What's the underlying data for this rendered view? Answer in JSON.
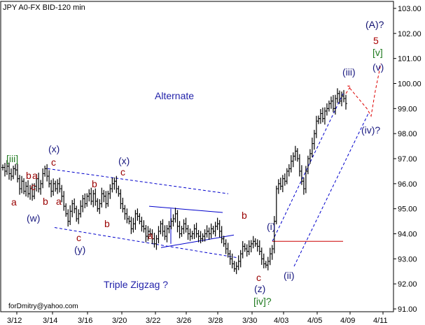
{
  "chart_data": {
    "type": "candlestick",
    "title": "JPY A0-FX BID-120 min",
    "footer": "forDmitry@yahoo.com",
    "ylim": [
      90.8,
      103.2
    ],
    "y_ticks": [
      "103.00",
      "102.00",
      "101.00",
      "100.00",
      "99.00",
      "98.00",
      "97.00",
      "96.00",
      "95.00",
      "94.00",
      "93.00",
      "92.00",
      "91.00"
    ],
    "x_ticks": [
      "3/12",
      "3/14",
      "3/16",
      "3/20",
      "3/22",
      "3/26",
      "3/28",
      "3/30",
      "4/03",
      "4/05",
      "4/09",
      "4/11"
    ],
    "annotations_text": {
      "alternate": "Alternate",
      "triple_zigzag": "Triple Zigzag ?",
      "A": "(A)?",
      "five": "5",
      "v_bracket": "[v]",
      "v_paren": "(v)",
      "iii_paren": "(iii)",
      "iv_q": "(iv)?",
      "iii_bracket": "[iii]",
      "x1": "(x)",
      "x2": "(x)",
      "w": "(w)",
      "y": "(y)",
      "z": "(z)",
      "iv_bracket_q": "[iv]?",
      "i_paren": "(i)",
      "ii_paren": "(ii)",
      "a": "a",
      "b": "b",
      "c": "c"
    },
    "series_close": [
      96.65,
      96.5,
      96.7,
      96.4,
      96.3,
      96.6,
      96.55,
      96.2,
      95.8,
      96.1,
      95.7,
      95.9,
      95.6,
      95.8,
      95.5,
      95.9,
      96.2,
      95.8,
      96.0,
      96.4,
      96.6,
      96.3,
      96.0,
      95.7,
      96.0,
      95.8,
      96.0,
      95.8,
      95.5,
      95.1,
      94.8,
      94.5,
      94.9,
      95.2,
      95.0,
      94.6,
      94.8,
      95.1,
      95.4,
      95.2,
      95.5,
      95.6,
      95.3,
      95.6,
      95.3,
      95.0,
      95.2,
      95.6,
      95.5,
      95.2,
      95.6,
      95.8,
      96.0,
      96.1,
      95.8,
      95.6,
      95.2,
      95.0,
      94.8,
      94.6,
      94.5,
      94.2,
      94.4,
      94.8,
      94.7,
      94.5,
      94.3,
      94.2,
      93.9,
      94.1,
      94.0,
      93.8,
      93.6,
      93.8,
      94.1,
      94.4,
      94.1,
      93.9,
      94.2,
      94.3,
      94.5,
      94.6,
      94.8,
      94.3,
      94.0,
      94.2,
      94.4,
      94.2,
      94.0,
      93.9,
      94.0,
      94.2,
      94.0,
      93.9,
      93.8,
      93.9,
      94.0,
      94.1,
      94.0,
      94.2,
      94.1,
      94.3,
      94.4,
      94.1,
      93.8,
      93.6,
      93.4,
      93.2,
      93.0,
      92.8,
      92.6,
      92.7,
      92.9,
      93.2,
      93.5,
      93.4,
      93.3,
      93.5,
      93.6,
      93.7,
      93.6,
      93.5,
      93.3,
      93.0,
      92.8,
      92.75,
      92.9,
      93.2,
      93.4,
      94.5,
      95.8,
      96.0,
      95.9,
      96.2,
      96.1,
      96.5,
      96.6,
      96.9,
      97.1,
      97.3,
      97.0,
      96.5,
      96.1,
      95.8,
      96.5,
      97.0,
      97.2,
      97.6,
      98.0,
      98.5,
      98.6,
      98.8,
      98.6,
      98.9,
      99.0,
      99.2,
      99.3,
      99.0,
      99.4,
      99.6,
      99.3,
      99.5,
      99.4,
      99.2
    ]
  }
}
